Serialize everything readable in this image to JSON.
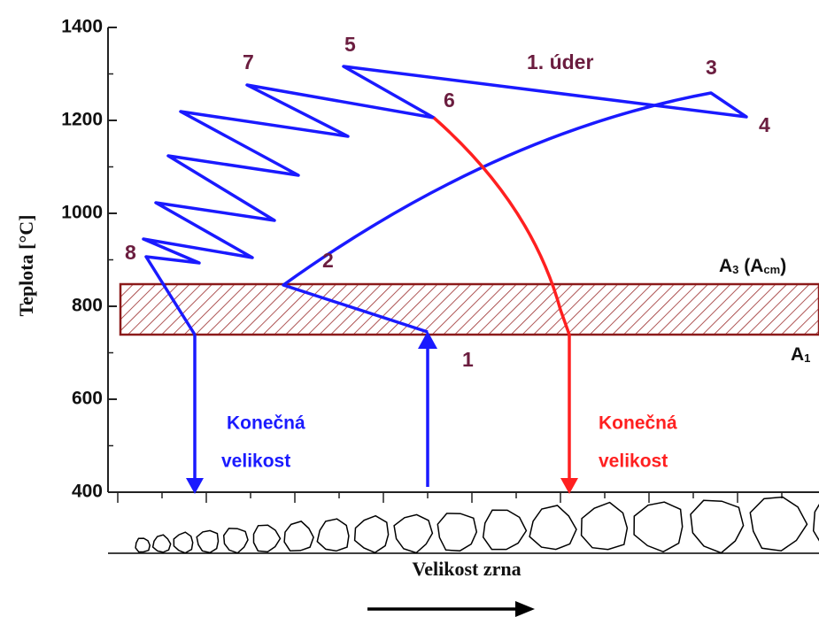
{
  "chart_data": {
    "type": "line",
    "ylabel": "Teplota [°C]",
    "xlabel": "Velikost zrna",
    "ylim": [
      400,
      1400
    ],
    "yticks": [
      400,
      600,
      800,
      1000,
      1200,
      1400
    ],
    "point_labels": [
      "1",
      "2",
      "3",
      "4",
      "5",
      "6",
      "7",
      "8"
    ],
    "blow_label": "1. úder",
    "final_size_blue": [
      "Konečná",
      "velikost"
    ],
    "final_size_red": [
      "Konečná",
      "velikost"
    ],
    "a3_label": [
      "A",
      "3",
      " (A",
      "cm",
      ")"
    ],
    "a1_label": [
      "A",
      "1"
    ]
  }
}
